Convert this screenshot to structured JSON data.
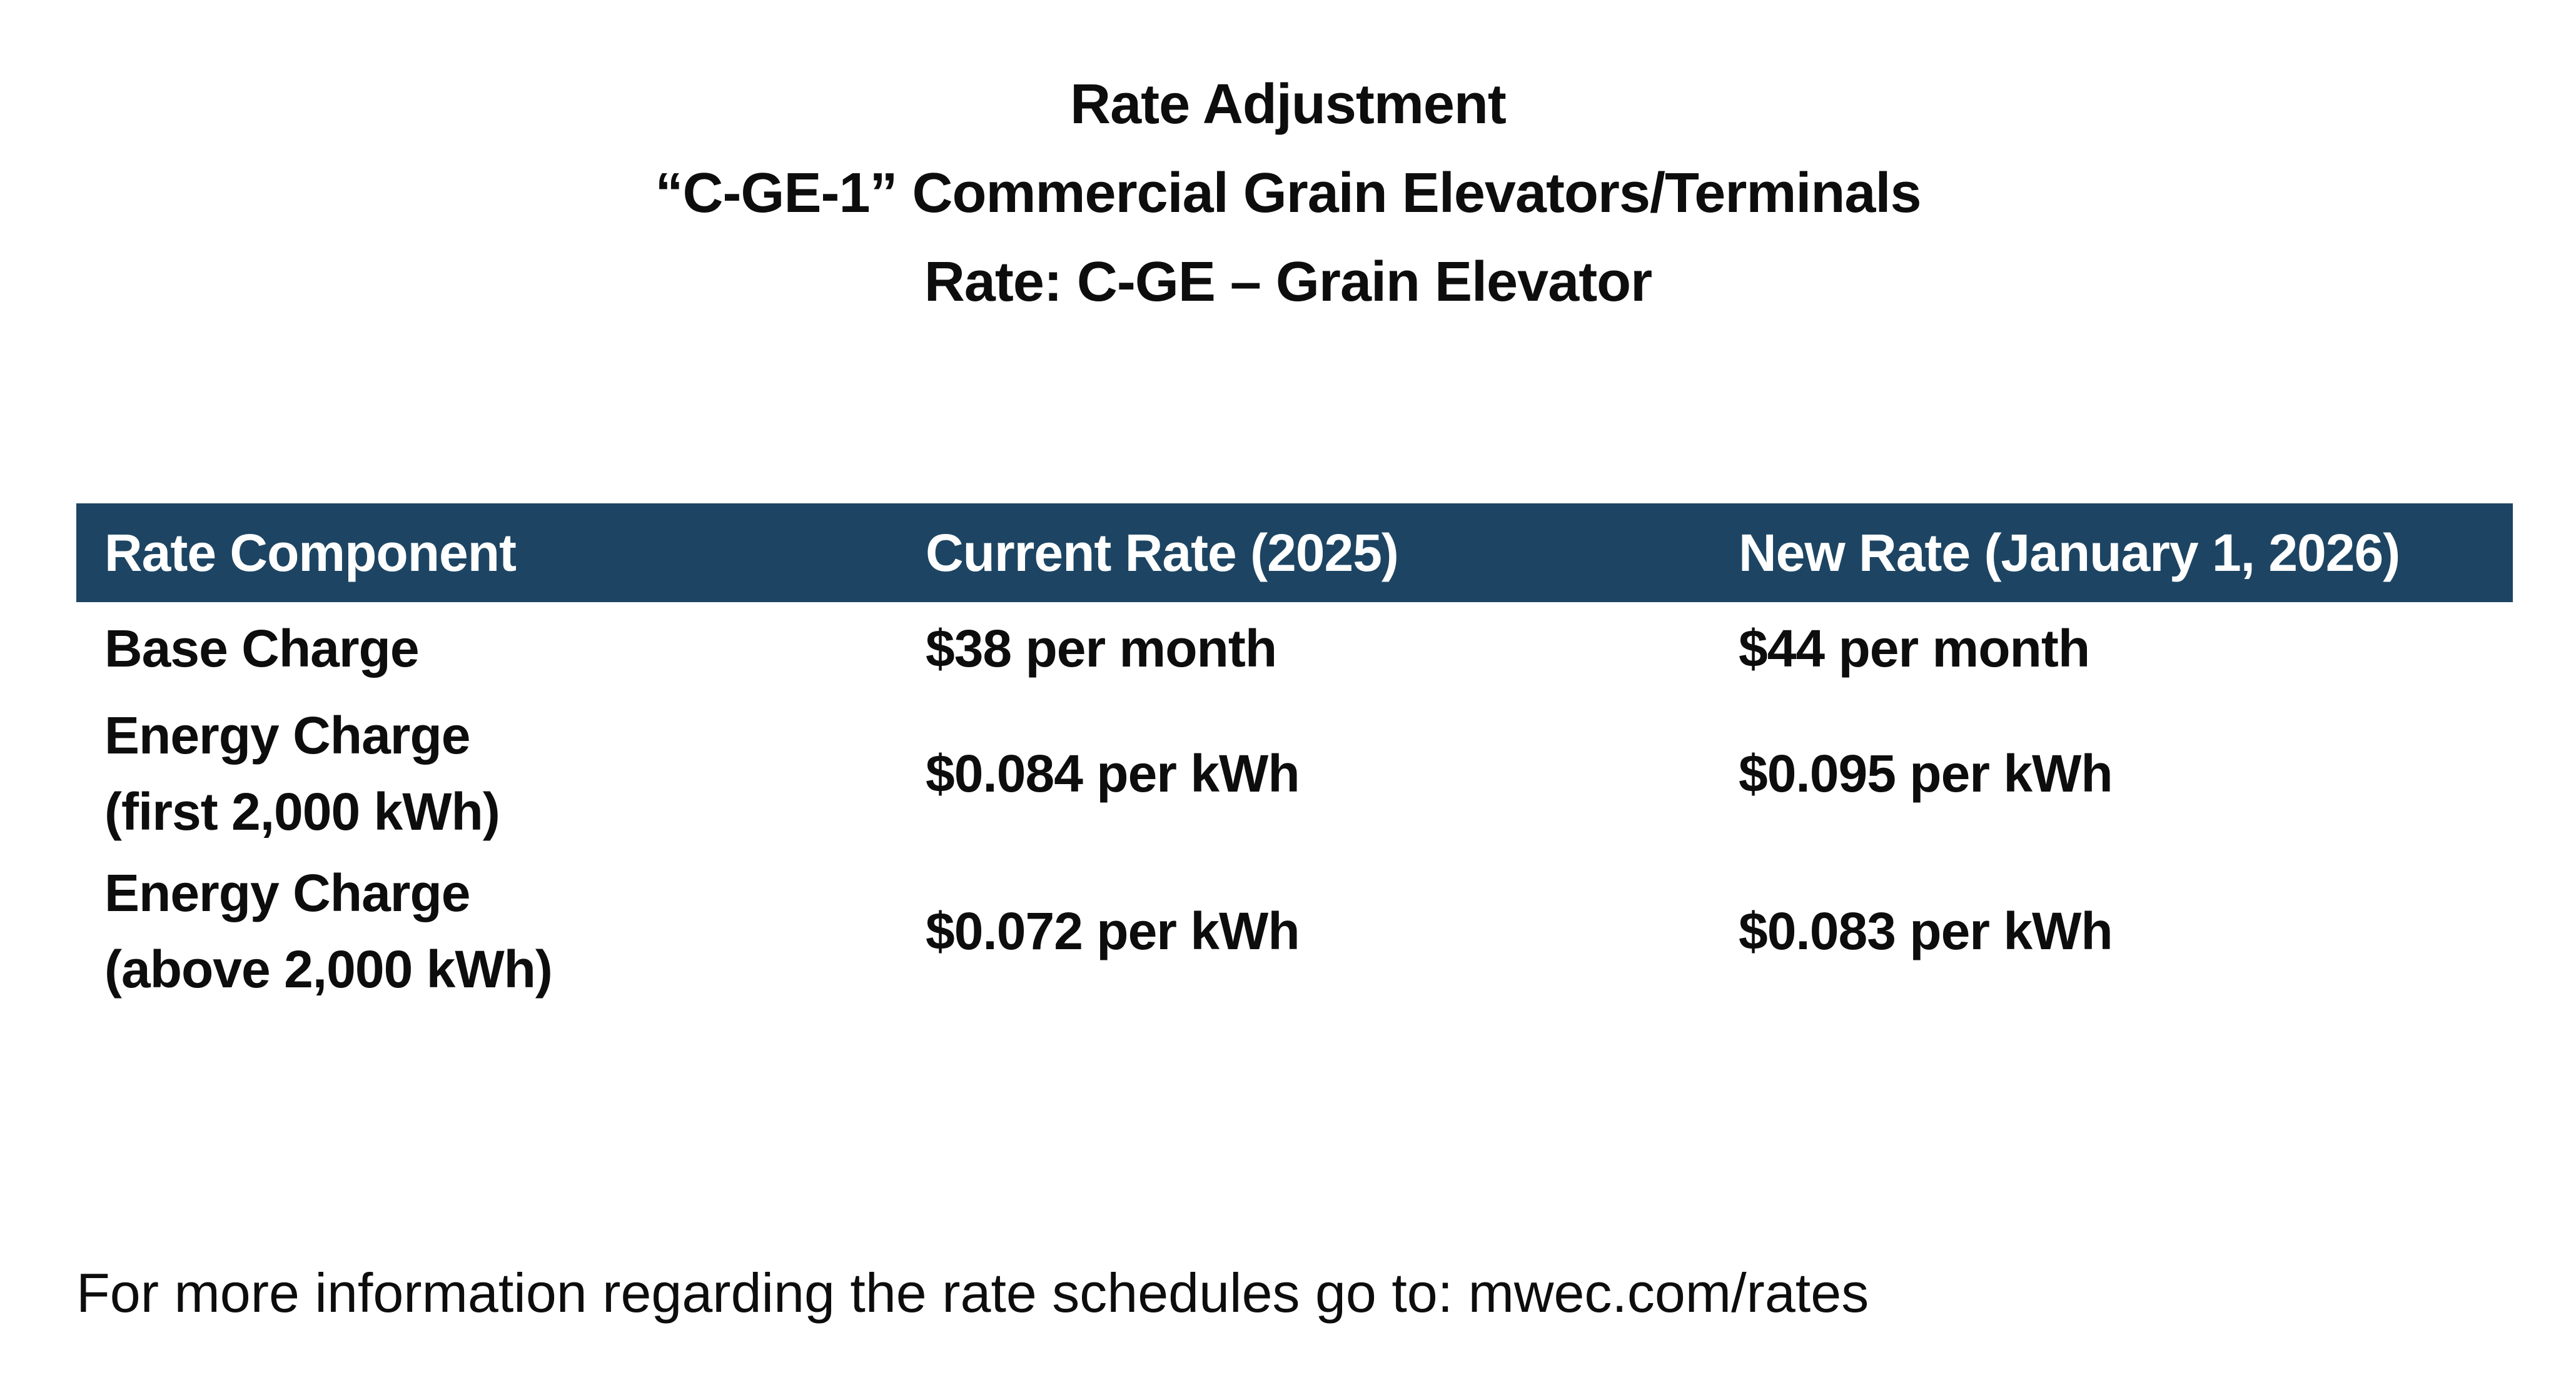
{
  "page": {
    "title_lines": [
      "Rate Adjustment",
      "“C-GE-1” Commercial Grain Elevators/Terminals",
      "Rate: C-GE – Grain Elevator"
    ]
  },
  "table": {
    "headers": [
      "Rate Component",
      "Current Rate (2025)",
      "New Rate (January 1, 2026)"
    ],
    "rows": [
      {
        "component_line1": "Base Charge",
        "component_line2": "",
        "current": "$38 per month",
        "new": "$44 per month"
      },
      {
        "component_line1": "Energy Charge",
        "component_line2": "(first 2,000 kWh)",
        "current": "$0.084 per kWh",
        "new": "$0.095 per kWh"
      },
      {
        "component_line1": "Energy Charge",
        "component_line2": "(above 2,000 kWh)",
        "current": "$0.072 per kWh",
        "new": "$0.083 per kWh"
      }
    ]
  },
  "footer": {
    "text": "For more information regarding the rate schedules go to: mwec.com/rates"
  },
  "colors": {
    "header_bg": "#1d4563",
    "header_text": "#ffffff",
    "body_text": "#0d0d0d",
    "page_bg": "#ffffff"
  }
}
